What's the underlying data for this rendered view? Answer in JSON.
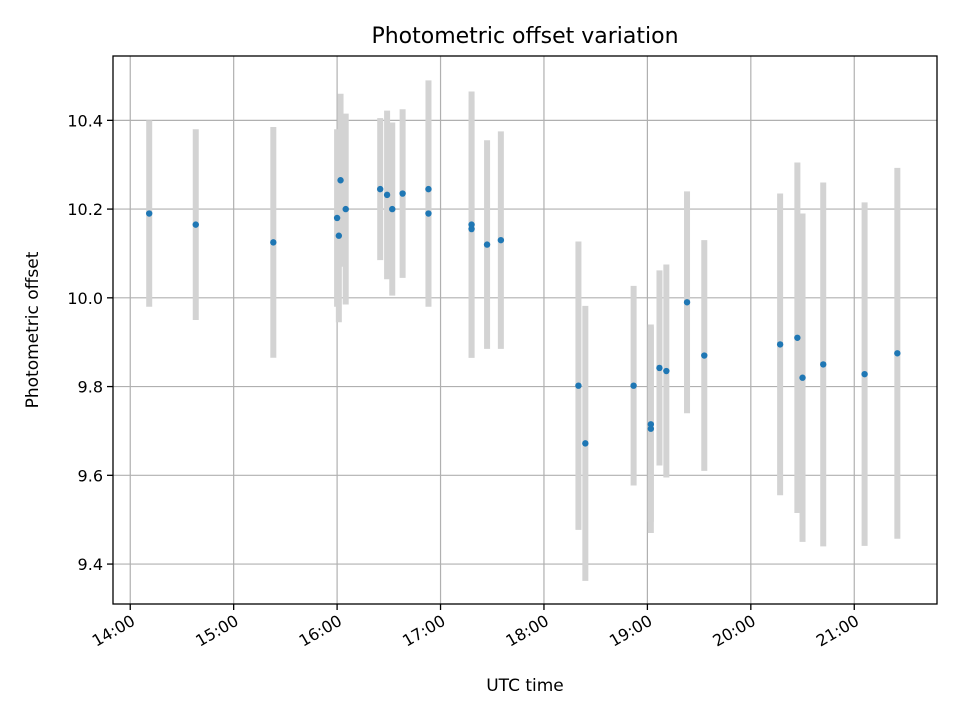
{
  "chart_data": {
    "type": "scatter",
    "title": "Photometric offset variation",
    "xlabel": "UTC time",
    "ylabel": "Photometric offset",
    "x_ticks": [
      "14:00",
      "15:00",
      "16:00",
      "17:00",
      "18:00",
      "19:00",
      "20:00",
      "21:00"
    ],
    "y_ticks": [
      9.4,
      9.6,
      9.8,
      10.0,
      10.2,
      10.4
    ],
    "xlim": [
      "13:50",
      "21:48"
    ],
    "ylim": [
      9.31,
      10.545
    ],
    "grid": true,
    "colors": {
      "point": "#1f77b4",
      "errorbar": "#d3d3d3"
    },
    "points": [
      {
        "x": "14:11",
        "y": 10.19,
        "err": 0.21
      },
      {
        "x": "14:38",
        "y": 10.165,
        "err": 0.215
      },
      {
        "x": "15:23",
        "y": 10.125,
        "err": 0.26
      },
      {
        "x": "16:00",
        "y": 10.18,
        "err": 0.2
      },
      {
        "x": "16:01",
        "y": 10.14,
        "err": 0.195
      },
      {
        "x": "16:02",
        "y": 10.265,
        "err": 0.195
      },
      {
        "x": "16:05",
        "y": 10.2,
        "err": 0.215
      },
      {
        "x": "16:25",
        "y": 10.245,
        "err": 0.16
      },
      {
        "x": "16:29",
        "y": 10.232,
        "err": 0.19
      },
      {
        "x": "16:32",
        "y": 10.2,
        "err": 0.195
      },
      {
        "x": "16:38",
        "y": 10.235,
        "err": 0.19
      },
      {
        "x": "16:53",
        "y": 10.19,
        "err": 0.21
      },
      {
        "x": "16:53",
        "y": 10.245,
        "err": 0.245
      },
      {
        "x": "17:18",
        "y": 10.165,
        "err": 0.3
      },
      {
        "x": "17:18",
        "y": 10.155,
        "err": 0.29
      },
      {
        "x": "17:27",
        "y": 10.12,
        "err": 0.235
      },
      {
        "x": "17:35",
        "y": 10.13,
        "err": 0.245
      },
      {
        "x": "18:20",
        "y": 9.802,
        "err": 0.325
      },
      {
        "x": "18:24",
        "y": 9.672,
        "err": 0.31
      },
      {
        "x": "18:52",
        "y": 9.802,
        "err": 0.225
      },
      {
        "x": "19:02",
        "y": 9.715,
        "err": 0.22
      },
      {
        "x": "19:02",
        "y": 9.705,
        "err": 0.235
      },
      {
        "x": "19:07",
        "y": 9.842,
        "err": 0.22
      },
      {
        "x": "19:11",
        "y": 9.835,
        "err": 0.24
      },
      {
        "x": "19:23",
        "y": 9.99,
        "err": 0.25
      },
      {
        "x": "19:33",
        "y": 9.87,
        "err": 0.26
      },
      {
        "x": "20:17",
        "y": 9.895,
        "err": 0.34
      },
      {
        "x": "20:27",
        "y": 9.91,
        "err": 0.395
      },
      {
        "x": "20:30",
        "y": 9.82,
        "err": 0.37
      },
      {
        "x": "20:42",
        "y": 9.85,
        "err": 0.41
      },
      {
        "x": "21:06",
        "y": 9.828,
        "err": 0.387
      },
      {
        "x": "21:25",
        "y": 9.875,
        "err": 0.418
      }
    ]
  }
}
